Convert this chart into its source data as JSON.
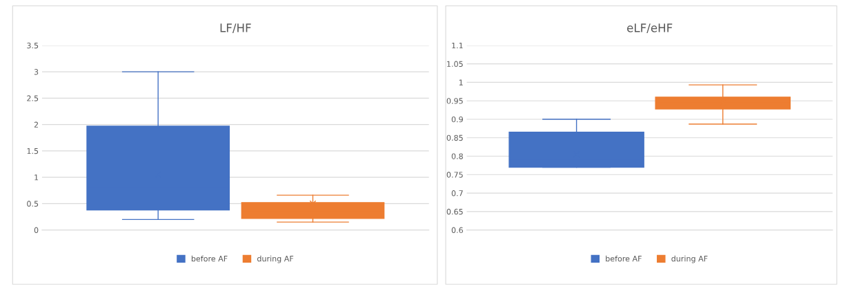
{
  "chart_data": [
    {
      "type": "box",
      "title": "LF/HF",
      "categories": [
        null
      ],
      "ylim": [
        0,
        3.5
      ],
      "yticks": [
        0,
        0.5,
        1,
        1.5,
        2,
        2.5,
        3,
        3.5
      ],
      "grid": "y",
      "legend": "bottom",
      "marker": "cross",
      "series": [
        {
          "name": "before AF",
          "color": "#4472c4",
          "boxes": [
            {
              "low": 0.2,
              "q1": 0.38,
              "median": 0.8,
              "q3": 1.97,
              "high": 3.0,
              "mean": 1.05
            }
          ]
        },
        {
          "name": "during AF",
          "color": "#ed7d31",
          "boxes": [
            {
              "low": 0.15,
              "q1": 0.22,
              "median": 0.35,
              "q3": 0.52,
              "high": 0.66,
              "mean": 0.5
            }
          ]
        }
      ]
    },
    {
      "type": "box",
      "title": "eLF/eHF",
      "categories": [
        null
      ],
      "ylim": [
        0.6,
        1.1
      ],
      "yticks": [
        0.6,
        0.65,
        0.7,
        0.75,
        0.8,
        0.85,
        0.9,
        0.95,
        1,
        1.05,
        1.1
      ],
      "grid": "y",
      "legend": "bottom",
      "marker": "cross",
      "series": [
        {
          "name": "before AF",
          "color": "#4472c4",
          "boxes": [
            {
              "low": 0.77,
              "q1": 0.77,
              "median": 0.79,
              "q3": 0.865,
              "high": 0.9,
              "mean": 0.805
            }
          ]
        },
        {
          "name": "during AF",
          "color": "#ed7d31",
          "boxes": [
            {
              "low": 0.887,
              "q1": 0.928,
              "median": 0.945,
              "q3": 0.96,
              "high": 0.993,
              "mean": 0.945
            }
          ]
        }
      ]
    }
  ]
}
